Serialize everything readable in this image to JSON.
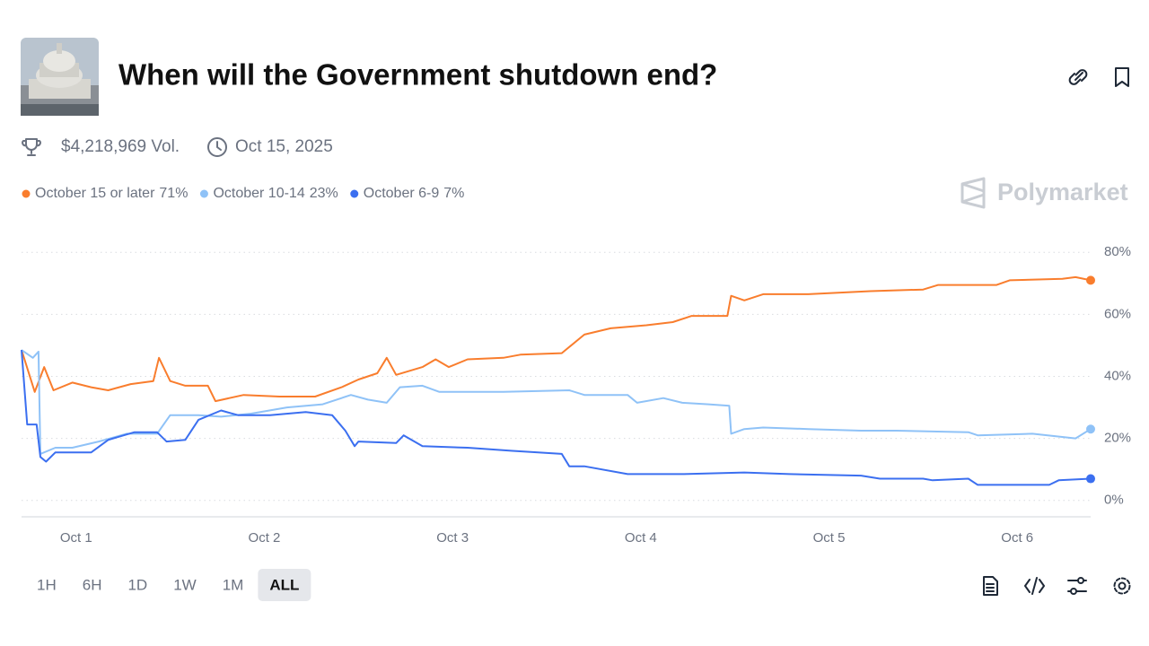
{
  "header": {
    "title": "When will the Government shutdown end?",
    "volume": "$4,218,969 Vol.",
    "end_date": "Oct 15, 2025",
    "brand": "Polymarket"
  },
  "timeframes": {
    "options": [
      "1H",
      "6H",
      "1D",
      "1W",
      "1M",
      "ALL"
    ],
    "selected": 5
  },
  "chart_data": {
    "type": "line",
    "xlim": [
      0.71,
      6.39
    ],
    "ylim": [
      -5,
      85
    ],
    "xticks": [
      {
        "value": 1,
        "label": "Oct 1"
      },
      {
        "value": 2,
        "label": "Oct 2"
      },
      {
        "value": 3,
        "label": "Oct 3"
      },
      {
        "value": 4,
        "label": "Oct 4"
      },
      {
        "value": 5,
        "label": "Oct 5"
      },
      {
        "value": 6,
        "label": "Oct 6"
      }
    ],
    "yticks": [
      {
        "value": 0,
        "label": "0%"
      },
      {
        "value": 20,
        "label": "20%"
      },
      {
        "value": 40,
        "label": "40%"
      },
      {
        "value": 60,
        "label": "60%"
      },
      {
        "value": 80,
        "label": "80%"
      }
    ],
    "grid": true,
    "series": [
      {
        "name": "October 15 or later",
        "color": "#f97d2d",
        "legend_label": "71%",
        "x": [
          0.71,
          0.78,
          0.83,
          0.88,
          0.98,
          1.08,
          1.17,
          1.29,
          1.41,
          1.44,
          1.5,
          1.58,
          1.7,
          1.74,
          1.89,
          2.08,
          2.27,
          2.41,
          2.5,
          2.6,
          2.65,
          2.7,
          2.84,
          2.91,
          2.98,
          3.08,
          3.27,
          3.36,
          3.58,
          3.7,
          3.84,
          4.03,
          4.17,
          4.27,
          4.46,
          4.48,
          4.55,
          4.65,
          4.89,
          5.22,
          5.5,
          5.58,
          5.89,
          5.96,
          6.24,
          6.31,
          6.39
        ],
        "values": [
          48.5,
          35,
          43,
          35.5,
          38,
          36.5,
          35.5,
          37.5,
          38.5,
          46,
          38.5,
          37,
          37,
          32,
          34,
          33.5,
          33.5,
          36.5,
          39,
          41,
          46,
          40.5,
          43,
          45.5,
          43,
          45.5,
          46,
          47,
          47.5,
          53.5,
          55.5,
          56.5,
          57.5,
          59.5,
          59.5,
          66,
          64.5,
          66.5,
          66.5,
          67.5,
          68,
          69.5,
          69.5,
          71,
          71.5,
          72,
          71
        ]
      },
      {
        "name": "October 10-14",
        "color": "#8fc2f7",
        "legend_label": "23%",
        "x": [
          0.71,
          0.77,
          0.8,
          0.81,
          0.89,
          0.98,
          1.12,
          1.27,
          1.43,
          1.5,
          1.65,
          1.77,
          1.93,
          2.12,
          2.31,
          2.46,
          2.55,
          2.65,
          2.72,
          2.84,
          2.93,
          3.27,
          3.62,
          3.7,
          3.93,
          3.98,
          4.12,
          4.22,
          4.36,
          4.47,
          4.48,
          4.55,
          4.65,
          4.89,
          5.17,
          5.36,
          5.74,
          5.79,
          6.08,
          6.31,
          6.39
        ],
        "values": [
          48.5,
          46,
          48,
          15,
          17,
          17,
          19,
          21.5,
          21.5,
          27.5,
          27.5,
          27,
          28,
          30,
          31,
          34,
          32.5,
          31.5,
          36.5,
          37,
          35,
          35,
          35.5,
          34,
          34,
          31.5,
          33,
          31.5,
          31,
          30.5,
          21.5,
          23,
          23.5,
          23,
          22.5,
          22.5,
          22,
          21,
          21.5,
          20,
          23
        ]
      },
      {
        "name": "October 6-9",
        "color": "#3b6ff0",
        "legend_label": "7%",
        "x": [
          0.71,
          0.74,
          0.79,
          0.81,
          0.84,
          0.89,
          1.08,
          1.17,
          1.31,
          1.43,
          1.48,
          1.58,
          1.65,
          1.77,
          1.86,
          2.03,
          2.22,
          2.36,
          2.43,
          2.48,
          2.5,
          2.7,
          2.74,
          2.84,
          3.08,
          3.31,
          3.58,
          3.62,
          3.7,
          3.93,
          4.22,
          4.55,
          4.79,
          5.17,
          5.27,
          5.5,
          5.55,
          5.74,
          5.79,
          6.17,
          6.22,
          6.39
        ],
        "values": [
          48.5,
          24.5,
          24.5,
          14,
          12.5,
          15.5,
          15.5,
          19.5,
          22,
          22,
          19,
          19.5,
          26,
          29,
          27.5,
          27.5,
          28.5,
          27.5,
          22.5,
          17.5,
          19,
          18.5,
          21,
          17.5,
          17,
          16,
          15,
          11,
          11,
          8.5,
          8.5,
          9,
          8.5,
          8,
          7,
          7,
          6.5,
          7,
          5,
          5,
          6.5,
          7
        ]
      }
    ]
  }
}
